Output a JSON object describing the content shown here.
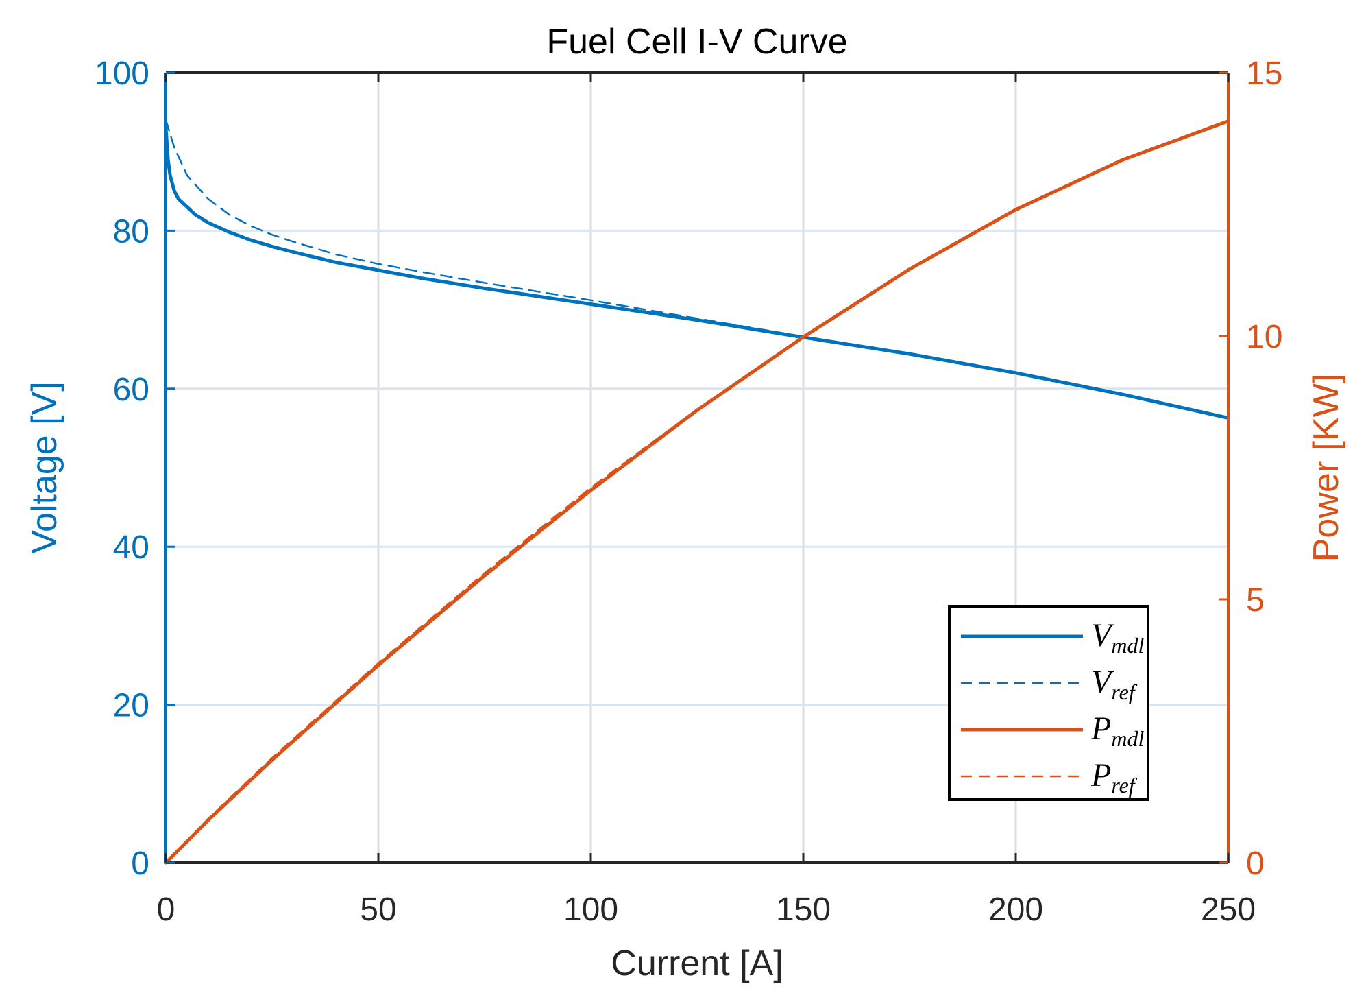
{
  "chart_data": {
    "type": "line",
    "title": "Fuel Cell I-V Curve",
    "xlabel": "Current [A]",
    "ylabel_left": "Voltage [V]",
    "ylabel_right": "Power [KW]",
    "xlim": [
      0,
      250
    ],
    "ylim_left": [
      0,
      100
    ],
    "ylim_right": [
      0,
      15
    ],
    "xticks": [
      "0",
      "50",
      "100",
      "150",
      "200",
      "250"
    ],
    "yticks_left": [
      "0",
      "20",
      "40",
      "60",
      "80",
      "100"
    ],
    "yticks_right": [
      "0",
      "5",
      "10",
      "15"
    ],
    "grid": true,
    "legend_position": "bottom-right",
    "colors": {
      "voltage": "#0072BD",
      "power": "#D95319",
      "grid": "#dcdcdc",
      "frame": "#262626"
    },
    "series": [
      {
        "name": "V_mdl",
        "label_main": "V",
        "label_sub": "mdl",
        "axis": "left",
        "style": "solid",
        "x": [
          0,
          0.5,
          1,
          2,
          3,
          5,
          7,
          10,
          15,
          20,
          25,
          30,
          40,
          50,
          60,
          75,
          100,
          125,
          150,
          175,
          200,
          225,
          250
        ],
        "y": [
          93,
          89,
          87,
          85,
          84,
          83,
          82,
          81,
          79.8,
          78.8,
          78,
          77.3,
          76,
          75,
          74,
          72.7,
          70.7,
          68.7,
          66.5,
          64.4,
          62,
          59.3,
          56.3
        ]
      },
      {
        "name": "V_ref",
        "label_main": "V",
        "label_sub": "ref",
        "axis": "left",
        "style": "dashed",
        "x": [
          0,
          2,
          5,
          10,
          15,
          20,
          25,
          30,
          40,
          50,
          60,
          75,
          100,
          125,
          150,
          175,
          200,
          225,
          250
        ],
        "y": [
          94,
          90.5,
          87,
          84,
          82,
          80.6,
          79.5,
          78.6,
          77,
          75.8,
          74.8,
          73.4,
          71.2,
          68.9,
          66.6,
          64.4,
          62,
          59.3,
          56.3
        ]
      },
      {
        "name": "P_mdl",
        "label_main": "P",
        "label_sub": "mdl",
        "axis": "right",
        "style": "solid",
        "x": [
          0,
          10,
          25,
          50,
          75,
          100,
          125,
          150,
          175,
          200,
          225,
          250
        ],
        "y": [
          0,
          0.81,
          1.95,
          3.75,
          5.45,
          7.07,
          8.59,
          9.98,
          11.27,
          12.4,
          13.34,
          14.08
        ]
      },
      {
        "name": "P_ref",
        "label_main": "P",
        "label_sub": "ref",
        "axis": "right",
        "style": "dashed",
        "x": [
          0,
          10,
          25,
          50,
          75,
          100,
          125,
          150,
          175,
          200,
          225,
          250
        ],
        "y": [
          0,
          0.84,
          1.99,
          3.79,
          5.5,
          7.12,
          8.61,
          9.99,
          11.27,
          12.4,
          13.34,
          14.08
        ]
      }
    ]
  }
}
